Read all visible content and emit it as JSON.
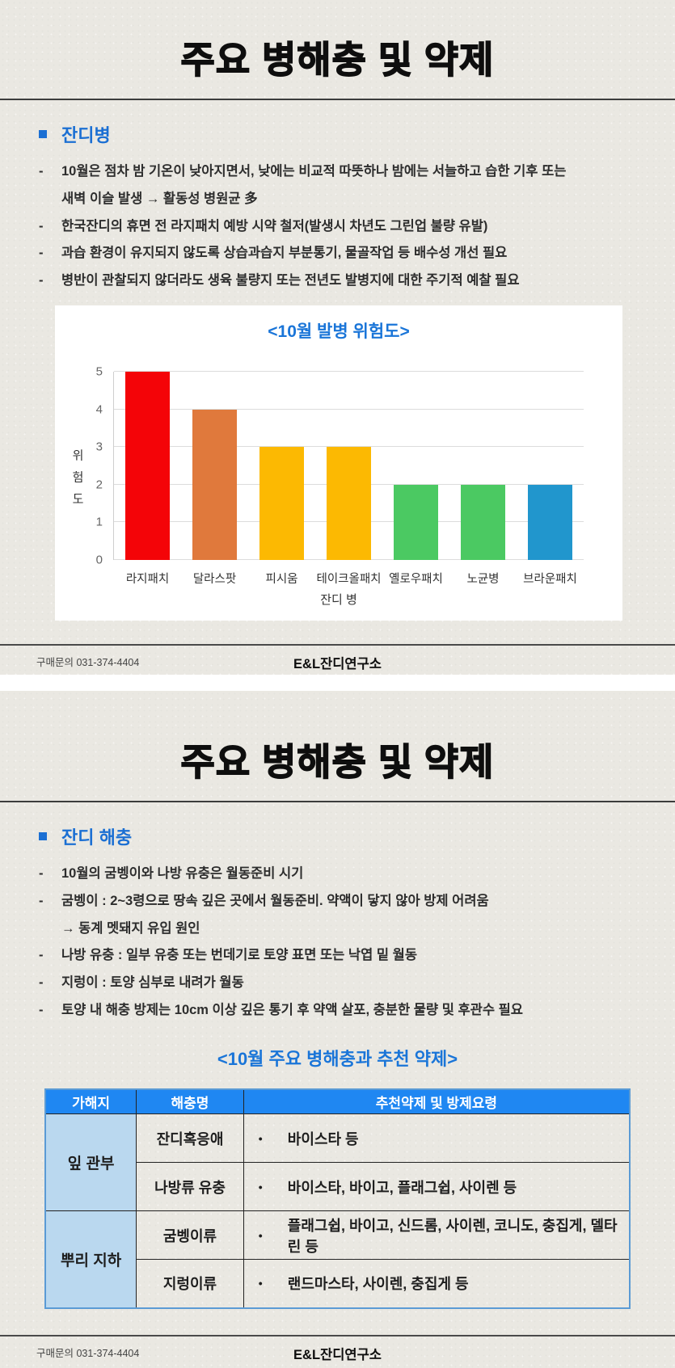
{
  "card1": {
    "title": "주요 병해충 및 약제",
    "section": "잔디병",
    "bullets": [
      {
        "marker": "-",
        "text": "10월은 점차 밤 기온이 낮아지면서, 낮에는 비교적 따뜻하나 밤에는 서늘하고 습한 기후 또는"
      },
      {
        "marker": "",
        "text": "새벽 이슬 발생 → 활동성 병원균 多"
      },
      {
        "marker": "-",
        "text": "한국잔디의 휴면 전 라지패치 예방 시약 철저(발생시 차년도 그린업 불량 유발)"
      },
      {
        "marker": "-",
        "text": "과습 환경이 유지되지 않도록 상습과습지 부분통기, 물골작업 등 배수성 개선 필요"
      },
      {
        "marker": "-",
        "text": "병반이 관찰되지 않더라도 생육 불량지 또는 전년도 발병지에 대한 주기적 예찰 필요"
      }
    ],
    "footer": {
      "left": "구매문의 031-374-4404",
      "center": "E&L잔디연구소"
    }
  },
  "chart_data": {
    "type": "bar",
    "title": "<10월 발병 위험도>",
    "categories": [
      "라지패치",
      "달라스팟",
      "피시움",
      "테이크올패치",
      "옐로우패치",
      "노균병",
      "브라운패치"
    ],
    "values": [
      5,
      4,
      3,
      3,
      2,
      2,
      2
    ],
    "colors": [
      "#f40408",
      "#e0793c",
      "#fcb902",
      "#fcb902",
      "#4bc962",
      "#4bc962",
      "#2196cd"
    ],
    "xlabel": "잔디 병",
    "ylabel": "위험도",
    "ylim": [
      0,
      5
    ],
    "yticks": [
      0,
      1,
      2,
      3,
      4,
      5
    ],
    "grid": true,
    "legend": "none"
  },
  "card2": {
    "title": "주요 병해충 및 약제",
    "section": "잔디 해충",
    "bullets": [
      {
        "marker": "-",
        "text": "10월의 굼벵이와 나방 유충은 월동준비 시기"
      },
      {
        "marker": "-",
        "text": "굼벵이 : 2~3령으로 땅속 깊은 곳에서 월동준비. 약액이 닿지 않아 방제 어려움"
      },
      {
        "marker": "",
        "text": "→ 동계 멧돼지 유입 원인"
      },
      {
        "marker": "-",
        "text": "나방 유충 : 일부 유충 또는 번데기로 토양 표면 또는 낙엽 밑 월동"
      },
      {
        "marker": "-",
        "text": "지렁이 : 토양 심부로 내려가 월동"
      },
      {
        "marker": "-",
        "text": "토양 내 해충 방제는 10cm 이상 깊은 통기 후 약액 살포, 충분한 물량 및 후관수 필요"
      }
    ],
    "table": {
      "title": "<10월 주요 병해충과 추천 약제>",
      "bullet": "•",
      "headers": [
        "가해지",
        "해충명",
        "추천약제 및 방제요령"
      ],
      "groups": [
        {
          "area": "잎 관부",
          "rows": [
            {
              "pest": "잔디혹응애",
              "drugs": "바이스타 등"
            },
            {
              "pest": "나방류 유충",
              "drugs": "바이스타, 바이고, 플래그쉽, 사이렌 등"
            }
          ]
        },
        {
          "area": "뿌리 지하",
          "rows": [
            {
              "pest": "굼벵이류",
              "drugs": "플래그쉽, 바이고, 신드롬, 사이렌, 코니도, 충집게, 델타린 등"
            },
            {
              "pest": "지렁이류",
              "drugs": "랜드마스타, 사이렌, 충집게 등"
            }
          ]
        }
      ]
    },
    "footer": {
      "left": "구매문의 031-374-4404",
      "center": "E&L잔디연구소"
    }
  },
  "colors": {
    "paper_background": "#eae8e2",
    "heading_blue": "#1b6fd3",
    "chart_title_blue": "#1a75d8",
    "table_header_background": "#1f87f2",
    "table_area_cell_background": "#bad8ef",
    "table_outer_border": "#5b9bd5"
  }
}
